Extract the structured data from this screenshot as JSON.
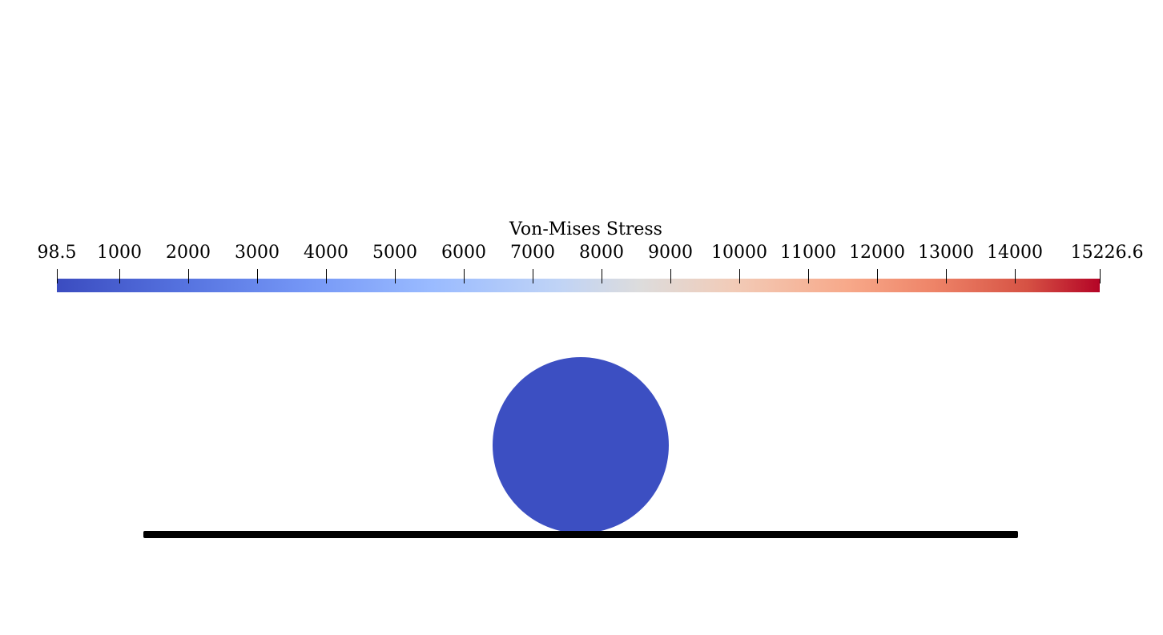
{
  "legend": {
    "title": "Von-Mises Stress",
    "range": [
      98.5,
      15226.6
    ],
    "tick_labels": [
      "98.5",
      "1000",
      "2000",
      "3000",
      "4000",
      "5000",
      "6000",
      "7000",
      "8000",
      "9000",
      "10000",
      "11000",
      "12000",
      "13000",
      "14000",
      "15226.6"
    ],
    "tick_values": [
      98.5,
      1000,
      2000,
      3000,
      4000,
      5000,
      6000,
      7000,
      8000,
      9000,
      10000,
      11000,
      12000,
      13000,
      14000,
      15226.6
    ],
    "colormap": [
      "#3b4cc0",
      "#dddcdc",
      "#b40426"
    ]
  },
  "scene": {
    "ball_color": "#3c4fc2",
    "plate_color": "#000000"
  }
}
